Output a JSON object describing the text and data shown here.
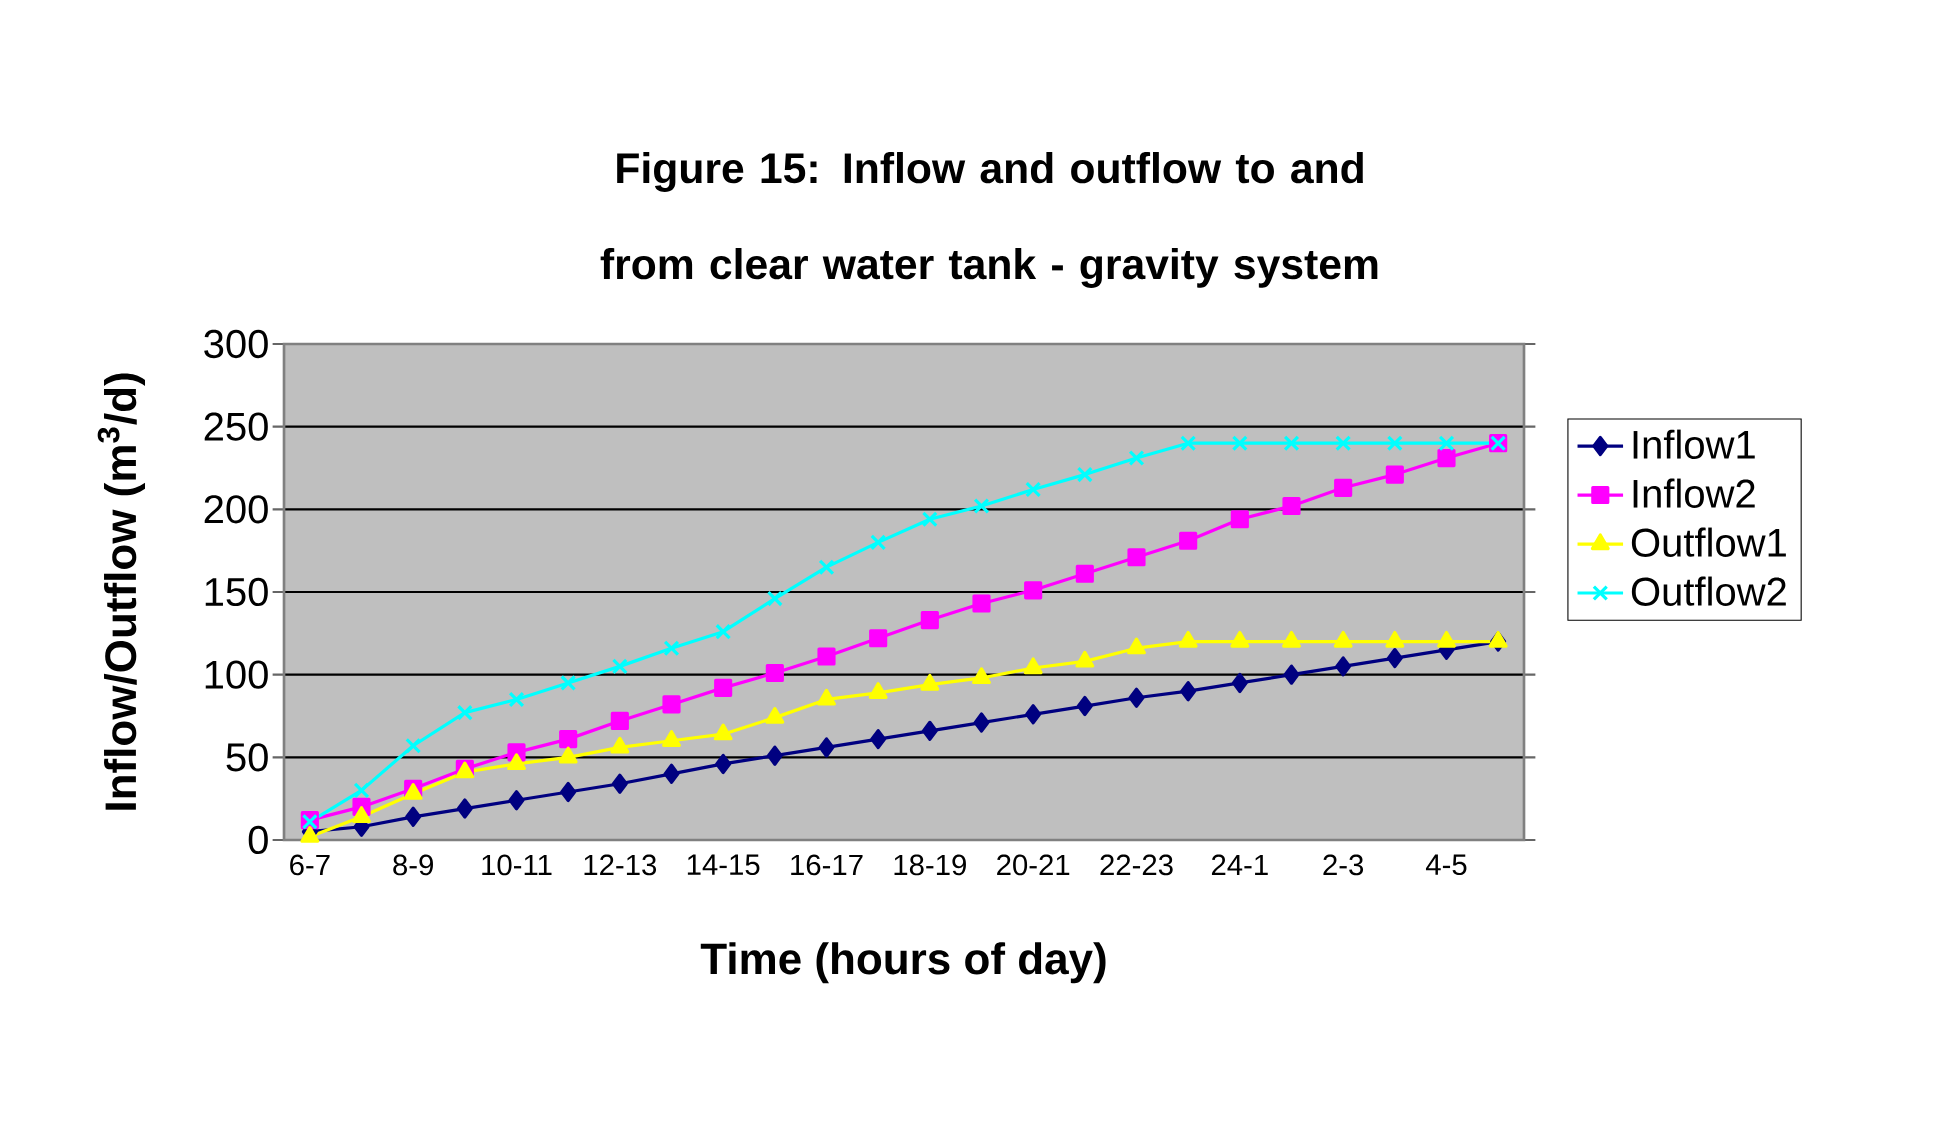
{
  "chart_data": {
    "type": "line",
    "title": "Figure 15: Inflow and outflow to and from clear water tank - gravity system",
    "xlabel": "Time (hours of day)",
    "ylabel": "Inflow/Outflow (m$^{3}$/d)",
    "categories": [
      "6-7",
      null,
      "8-9",
      null,
      "10-11",
      null,
      "12-13",
      null,
      "14-15",
      null,
      "16-17",
      null,
      "18-19",
      null,
      "20-21",
      null,
      "22-23",
      null,
      "24-1",
      null,
      "2-3",
      null,
      "4-5",
      null
    ],
    "series": [
      {
        "name": "Inflow1",
        "color": "#000080",
        "marker": "diamond",
        "values": [
          5,
          8,
          14,
          19,
          24,
          29,
          34,
          40,
          46,
          51,
          56,
          61,
          66,
          71,
          76,
          81,
          86,
          90,
          95,
          100,
          105,
          110,
          115,
          120
        ]
      },
      {
        "name": "Inflow2",
        "color": "#ff00ff",
        "marker": "square",
        "values": [
          12,
          20,
          31,
          43,
          53,
          61,
          72,
          82,
          92,
          101,
          111,
          122,
          133,
          143,
          151,
          161,
          171,
          181,
          194,
          202,
          213,
          221,
          231,
          240
        ]
      },
      {
        "name": "Outflow1",
        "color": "#ffff00",
        "marker": "triangle",
        "values": [
          2,
          14,
          28,
          41,
          46,
          50,
          56,
          60,
          64,
          74,
          85,
          89,
          94,
          98,
          104,
          108,
          116,
          120,
          120,
          120,
          120,
          120,
          120,
          120
        ]
      },
      {
        "name": "Outflow2",
        "color": "#00ffff",
        "marker": "cross",
        "values": [
          11,
          30,
          57,
          77,
          85,
          95,
          105,
          116,
          126,
          146,
          165,
          180,
          194,
          202,
          212,
          221,
          231,
          240,
          240,
          240,
          240,
          240,
          240,
          240
        ]
      }
    ],
    "ylim": [
      0,
      300
    ],
    "yticks": [
      0,
      50,
      100,
      150,
      200,
      250,
      300
    ],
    "grid": "y",
    "legend": "right",
    "line_style": "solid"
  }
}
